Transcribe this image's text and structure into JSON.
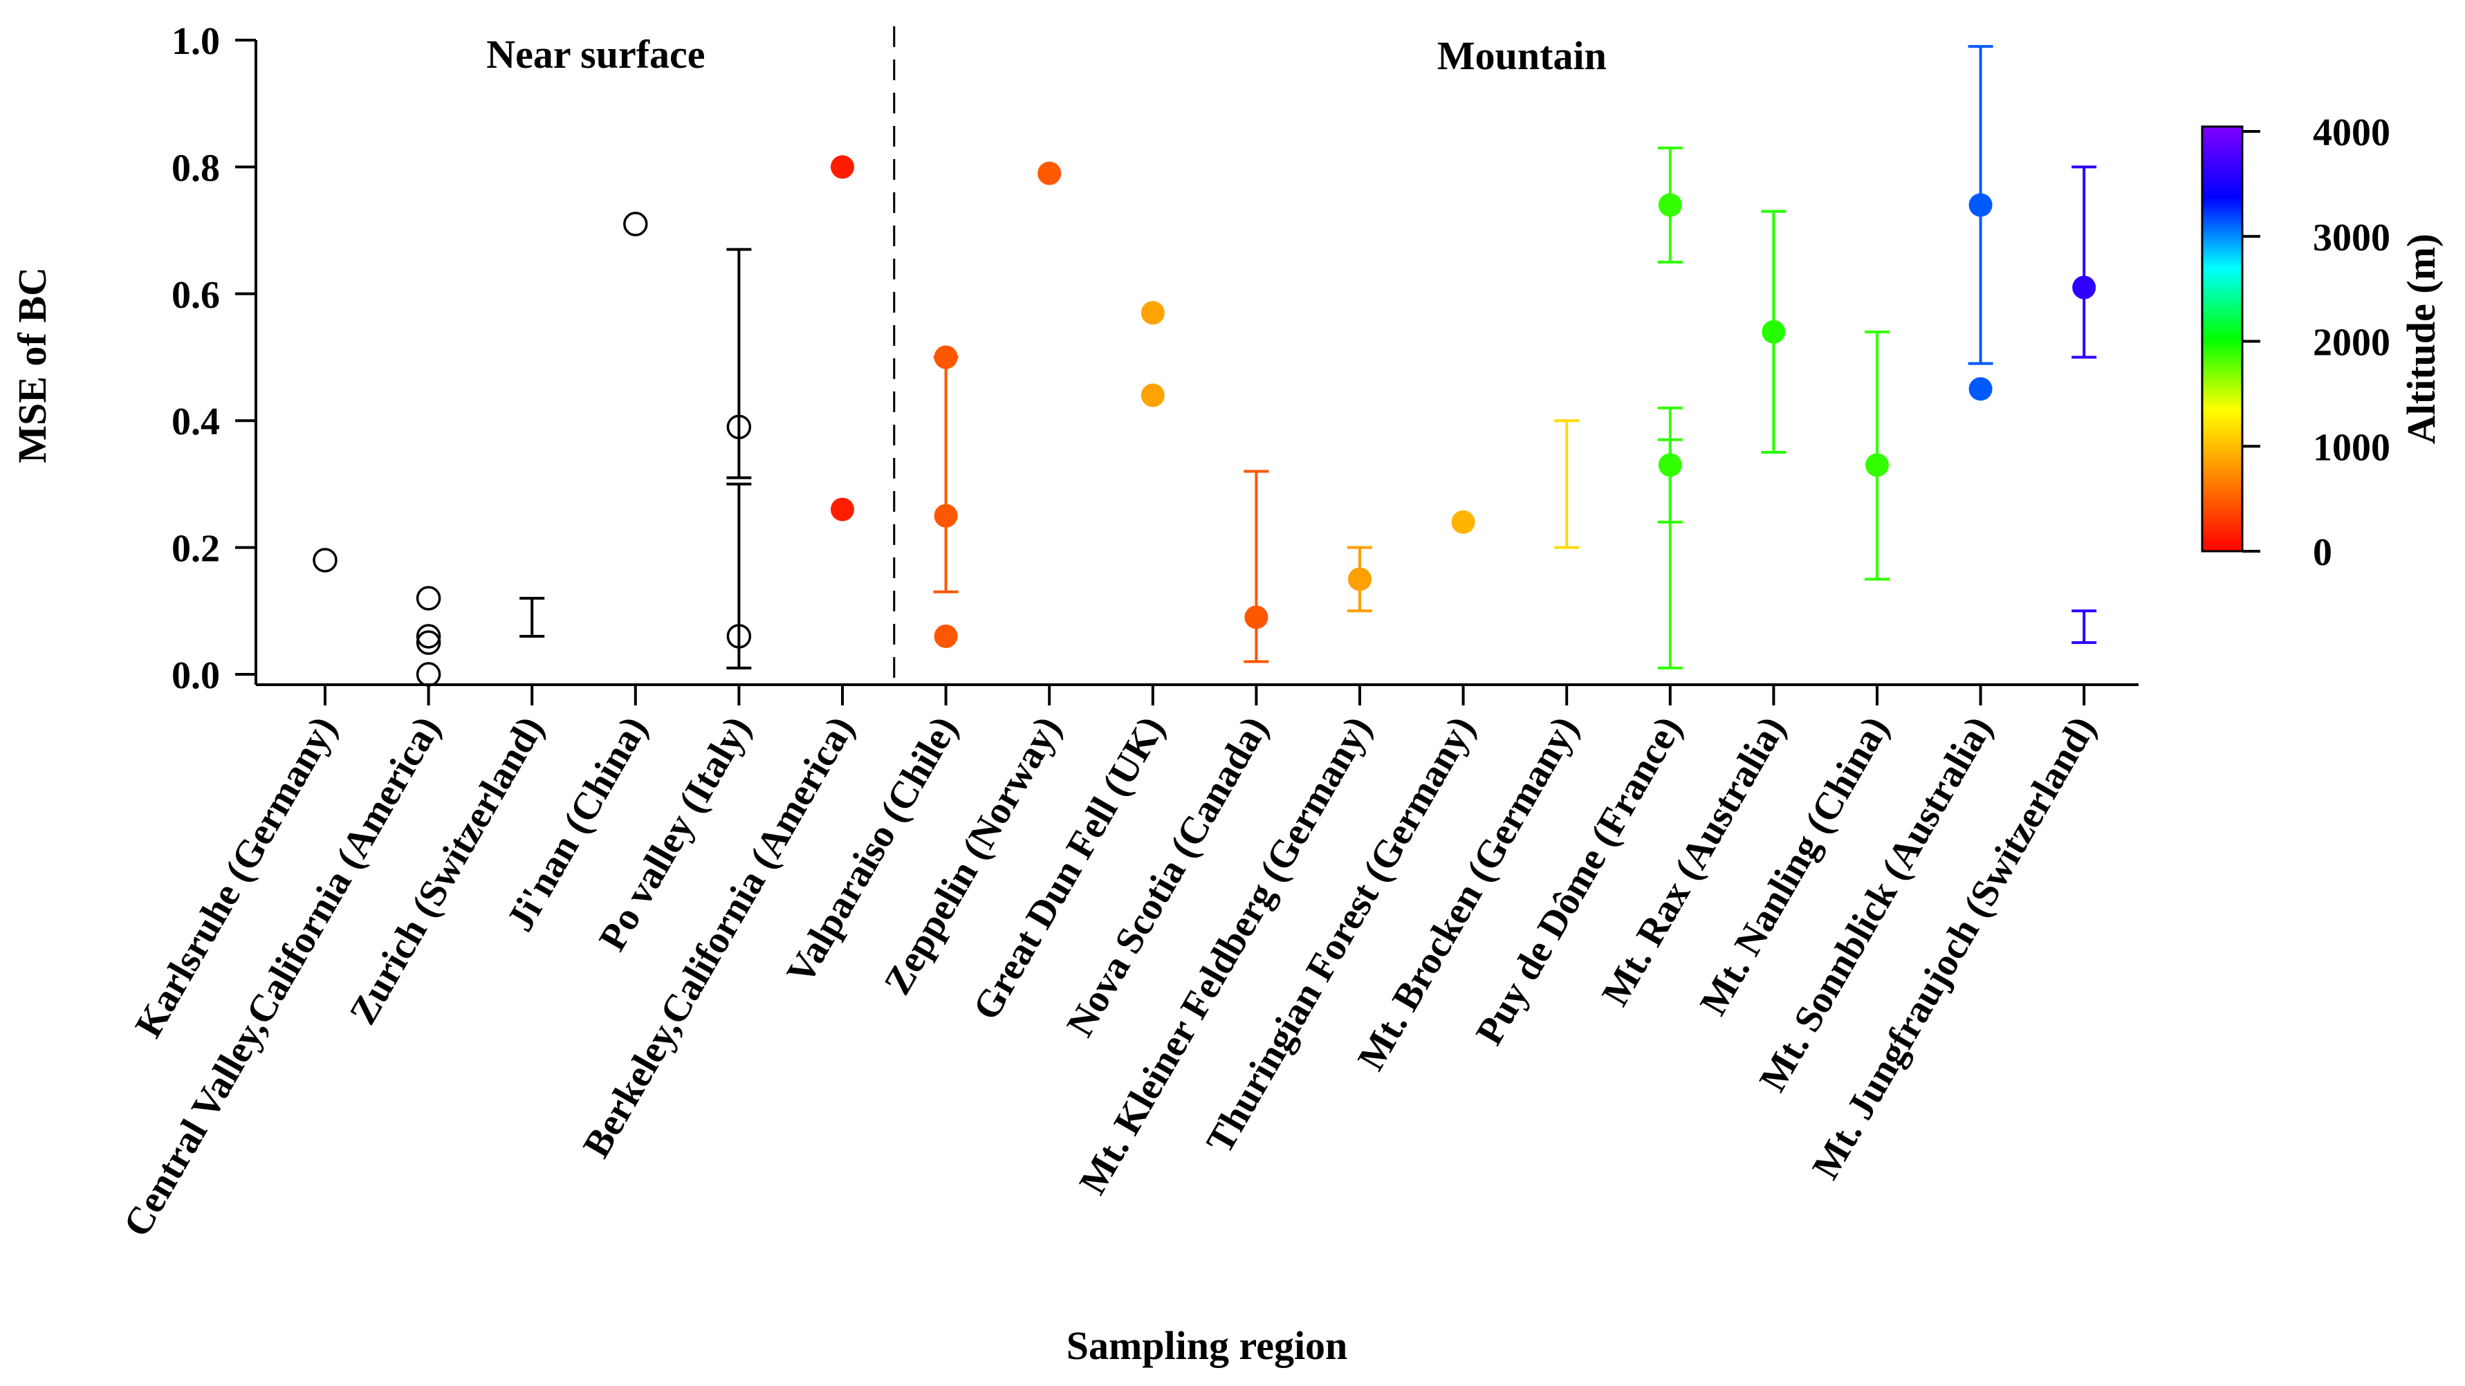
{
  "chart_data": {
    "type": "scatter",
    "title": "",
    "xlabel": "Sampling region",
    "ylabel": "MSE of BC",
    "ylim": [
      0,
      1.0
    ],
    "yticks": [
      "0.0",
      "0.2",
      "0.4",
      "0.6",
      "0.8",
      "1.0"
    ],
    "grid": false,
    "groups": [
      {
        "label": "Near surface",
        "first_category": 0,
        "last_category": 5
      },
      {
        "label": "Mountain",
        "first_category": 6,
        "last_category": 17
      }
    ],
    "categories": [
      "Karlsruhe (Germany)",
      "Central Valley,California (America)",
      "Zurich (Switzerland)",
      "Ji'nan (China)",
      "Po valley (Italy)",
      "Berkeley,California (America)",
      "Valparaiso (Chile)",
      "Zeppelin (Norway)",
      "Great Dun Fell (UK)",
      "Nova Scotia (Canada)",
      "Mt. Kleiner Feldberg (Germany)",
      "Thuringian Forest (Germany)",
      "Mt. Brocken (Germany)",
      "Puy de Dôme (France)",
      "Mt. Rax (Australia)",
      "Mt. Nanling (China)",
      "Mt. Sonnblick (Australia)",
      "Mt. Jungfraujoch (Switzerland)"
    ],
    "points": [
      {
        "category": 0,
        "y": 0.18,
        "altitude": null
      },
      {
        "category": 1,
        "y": 0.12,
        "altitude": null
      },
      {
        "category": 1,
        "y": 0.06,
        "altitude": null
      },
      {
        "category": 1,
        "y": 0.05,
        "altitude": null
      },
      {
        "category": 1,
        "y": 0.0,
        "altitude": null
      },
      {
        "category": 3,
        "y": 0.71,
        "altitude": null
      },
      {
        "category": 4,
        "y": 0.39,
        "altitude": null
      },
      {
        "category": 4,
        "y": 0.06,
        "altitude": null
      },
      {
        "category": 5,
        "y": 0.8,
        "altitude": 150
      },
      {
        "category": 5,
        "y": 0.26,
        "altitude": 150
      },
      {
        "category": 6,
        "y": 0.5,
        "altitude": 450
      },
      {
        "category": 6,
        "y": 0.25,
        "altitude": 450
      },
      {
        "category": 6,
        "y": 0.06,
        "altitude": 450
      },
      {
        "category": 7,
        "y": 0.79,
        "altitude": 470
      },
      {
        "category": 8,
        "y": 0.57,
        "altitude": 850
      },
      {
        "category": 8,
        "y": 0.44,
        "altitude": 850
      },
      {
        "category": 9,
        "y": 0.09,
        "altitude": 450
      },
      {
        "category": 10,
        "y": 0.15,
        "altitude": 830
      },
      {
        "category": 11,
        "y": 0.24,
        "altitude": 940
      },
      {
        "category": 13,
        "y": 0.74,
        "altitude": 1870
      },
      {
        "category": 13,
        "y": 0.33,
        "altitude": 1870
      },
      {
        "category": 14,
        "y": 0.54,
        "altitude": 1900
      },
      {
        "category": 15,
        "y": 0.33,
        "altitude": 1870
      },
      {
        "category": 16,
        "y": 0.74,
        "altitude": 3100
      },
      {
        "category": 16,
        "y": 0.45,
        "altitude": 3100
      },
      {
        "category": 17,
        "y": 0.61,
        "altitude": 3580
      }
    ],
    "error_bars": [
      {
        "category": 2,
        "low": 0.06,
        "high": 0.12,
        "altitude": null
      },
      {
        "category": 4,
        "low": 0.31,
        "high": 0.67,
        "altitude": null
      },
      {
        "category": 4,
        "low": 0.01,
        "high": 0.3,
        "altitude": null
      },
      {
        "category": 6,
        "low": 0.13,
        "high": 0.5,
        "altitude": 450
      },
      {
        "category": 9,
        "low": 0.02,
        "high": 0.32,
        "altitude": 450
      },
      {
        "category": 10,
        "low": 0.1,
        "high": 0.2,
        "altitude": 830
      },
      {
        "category": 12,
        "low": 0.2,
        "high": 0.4,
        "altitude": 1140
      },
      {
        "category": 13,
        "low": 0.65,
        "high": 0.83,
        "altitude": 1870
      },
      {
        "category": 13,
        "low": 0.24,
        "high": 0.42,
        "altitude": 1870
      },
      {
        "category": 13,
        "low": 0.01,
        "high": 0.37,
        "altitude": 1870
      },
      {
        "category": 14,
        "low": 0.35,
        "high": 0.73,
        "altitude": 1900
      },
      {
        "category": 15,
        "low": 0.15,
        "high": 0.54,
        "altitude": 1870
      },
      {
        "category": 16,
        "low": 0.49,
        "high": 0.99,
        "altitude": 3100
      },
      {
        "category": 17,
        "low": 0.5,
        "high": 0.8,
        "altitude": 3580
      },
      {
        "category": 17,
        "low": 0.05,
        "high": 0.1,
        "altitude": 3580
      }
    ],
    "colorbar": {
      "label": "Altitude (m)",
      "range": [
        0,
        4000
      ],
      "ticks": [
        "0",
        "1000",
        "2000",
        "3000",
        "4000"
      ],
      "colors": [
        "#ff0000",
        "#ff8000",
        "#ffff00",
        "#00ff00",
        "#00ffff",
        "#0000ff",
        "#8000ff"
      ]
    }
  }
}
